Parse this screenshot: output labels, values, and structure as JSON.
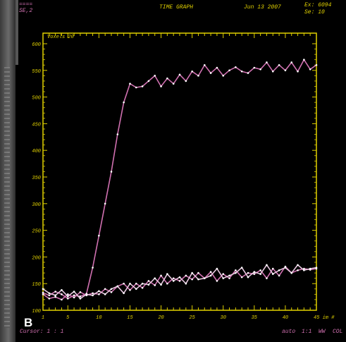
{
  "header": {
    "tag_top": "====",
    "tag_id": "SE,2",
    "title": "TIME GRAPH",
    "date": "Jun 13 2007",
    "ex_label": "Ex: 6094",
    "se_label": "Se: 10"
  },
  "panel_label": "B",
  "footer": {
    "cursor_label": "Cursor: 1 : 1",
    "right_a": "auto",
    "right_b": "1:1",
    "right_c": "WW",
    "right_d": "COL"
  },
  "chart_data": {
    "type": "line",
    "title": "",
    "xlabel": "",
    "ylabel": "",
    "xlim": [
      1,
      45
    ],
    "ylim": [
      100,
      600
    ],
    "grid": false,
    "x_tick_labels": [
      "1",
      "5",
      "10",
      "15",
      "20",
      "25",
      "30",
      "35",
      "40"
    ],
    "x_end_label": "45 im #",
    "y_tick_labels": [
      "600",
      "550",
      "500",
      "450",
      "400",
      "350",
      "300",
      "250",
      "200",
      "150",
      "100"
    ],
    "legend_label": "Voxels 20",
    "series": [
      {
        "name": "",
        "color": "#d070b0",
        "x": [
          1,
          2,
          3,
          4,
          5,
          6,
          7,
          8,
          9,
          10,
          11,
          12,
          13,
          14,
          15,
          16,
          17,
          18,
          19,
          20,
          21,
          22,
          23,
          24,
          25,
          26,
          27,
          28,
          29,
          30,
          31,
          32,
          33,
          34,
          35,
          36,
          37,
          38,
          39,
          40,
          41,
          42,
          43,
          44,
          45
        ],
        "values": [
          133,
          128,
          135,
          130,
          122,
          128,
          126,
          131,
          180,
          240,
          300,
          360,
          430,
          490,
          525,
          518,
          520,
          530,
          540,
          520,
          535,
          525,
          542,
          530,
          548,
          540,
          560,
          545,
          555,
          540,
          550,
          556,
          548,
          545,
          555,
          552,
          565,
          548,
          560,
          550,
          565,
          548,
          570,
          552,
          560
        ]
      },
      {
        "name": "",
        "color": "#d070b0",
        "x": [
          1,
          2,
          3,
          4,
          5,
          6,
          7,
          8,
          9,
          10,
          11,
          12,
          13,
          14,
          15,
          16,
          17,
          18,
          19,
          20,
          21,
          22,
          23,
          24,
          25,
          26,
          27,
          28,
          29,
          30,
          31,
          32,
          33,
          34,
          35,
          36,
          37,
          38,
          39,
          40,
          41,
          42,
          43,
          44,
          45
        ],
        "values": [
          130,
          122,
          125,
          120,
          130,
          124,
          134,
          128,
          132,
          130,
          140,
          134,
          145,
          150,
          138,
          150,
          142,
          155,
          147,
          165,
          150,
          160,
          155,
          165,
          158,
          170,
          160,
          172,
          155,
          168,
          160,
          175,
          162,
          170,
          168,
          175,
          160,
          178,
          165,
          182,
          170,
          175,
          178,
          176,
          178
        ]
      },
      {
        "name": "",
        "color": "#e8c8e0",
        "x": [
          1,
          2,
          3,
          4,
          5,
          6,
          7,
          8,
          9,
          10,
          11,
          12,
          13,
          14,
          15,
          16,
          17,
          18,
          19,
          20,
          21,
          22,
          23,
          24,
          25,
          26,
          27,
          28,
          29,
          30,
          31,
          32,
          33,
          34,
          35,
          36,
          37,
          38,
          39,
          40,
          41,
          42,
          43,
          44,
          45
        ],
        "values": [
          140,
          132,
          128,
          138,
          126,
          135,
          122,
          130,
          128,
          136,
          130,
          140,
          145,
          132,
          150,
          140,
          150,
          148,
          160,
          148,
          168,
          155,
          162,
          150,
          170,
          158,
          160,
          165,
          178,
          160,
          165,
          170,
          180,
          162,
          172,
          168,
          185,
          168,
          175,
          180,
          170,
          185,
          175,
          178,
          180
        ]
      }
    ]
  }
}
